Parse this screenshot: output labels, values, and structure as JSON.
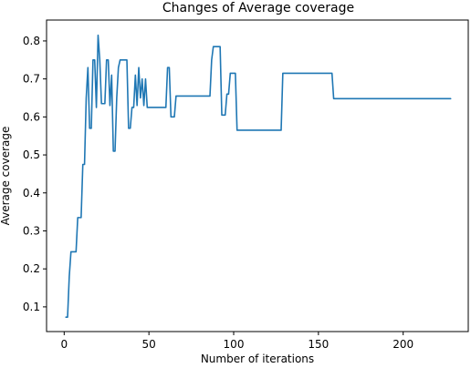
{
  "chart_data": {
    "type": "line",
    "title": "Changes of Average coverage",
    "xlabel": "Number of iterations",
    "ylabel": "Average coverage",
    "xlim": [
      -10.4,
      238.4
    ],
    "ylim": [
      0.035,
      0.855
    ],
    "xticks": [
      0,
      50,
      100,
      150,
      200
    ],
    "yticks": [
      0.1,
      0.2,
      0.3,
      0.4,
      0.5,
      0.6,
      0.7,
      0.8
    ],
    "grid": false,
    "color": "#1f77b4",
    "series": [
      {
        "x": [
          1,
          2,
          3,
          4,
          5,
          6,
          7,
          8,
          9,
          10,
          11,
          12,
          13,
          14,
          15,
          16,
          17,
          18,
          19,
          20,
          21,
          22,
          23,
          24,
          25,
          26,
          27,
          28,
          29,
          30,
          31,
          32,
          33,
          34,
          35,
          36,
          37,
          38,
          39,
          40,
          41,
          42,
          43,
          44,
          45,
          46,
          47,
          48,
          49,
          50,
          51,
          52,
          53,
          54,
          55,
          56,
          57,
          58,
          59,
          60,
          61,
          62,
          63,
          64,
          65,
          66,
          67,
          68,
          69,
          70,
          86,
          87,
          88,
          89,
          90,
          91,
          92,
          93,
          94,
          95,
          96,
          97,
          98,
          99,
          100,
          101,
          102,
          128,
          129,
          130,
          158,
          159,
          160,
          228
        ],
        "y": [
          0.073,
          0.073,
          0.18,
          0.245,
          0.245,
          0.245,
          0.245,
          0.335,
          0.335,
          0.335,
          0.475,
          0.475,
          0.65,
          0.73,
          0.57,
          0.57,
          0.75,
          0.75,
          0.625,
          0.815,
          0.75,
          0.635,
          0.635,
          0.635,
          0.75,
          0.75,
          0.63,
          0.71,
          0.51,
          0.51,
          0.65,
          0.73,
          0.75,
          0.75,
          0.75,
          0.75,
          0.75,
          0.57,
          0.57,
          0.625,
          0.625,
          0.71,
          0.63,
          0.73,
          0.65,
          0.7,
          0.63,
          0.7,
          0.625,
          0.625,
          0.625,
          0.625,
          0.625,
          0.625,
          0.625,
          0.625,
          0.625,
          0.625,
          0.625,
          0.625,
          0.73,
          0.73,
          0.6,
          0.6,
          0.6,
          0.655,
          0.655,
          0.655,
          0.655,
          0.655,
          0.655,
          0.75,
          0.785,
          0.785,
          0.785,
          0.785,
          0.785,
          0.605,
          0.605,
          0.605,
          0.66,
          0.66,
          0.715,
          0.715,
          0.715,
          0.715,
          0.565,
          0.565,
          0.715,
          0.715,
          0.715,
          0.648,
          0.648,
          0.648
        ]
      }
    ]
  }
}
